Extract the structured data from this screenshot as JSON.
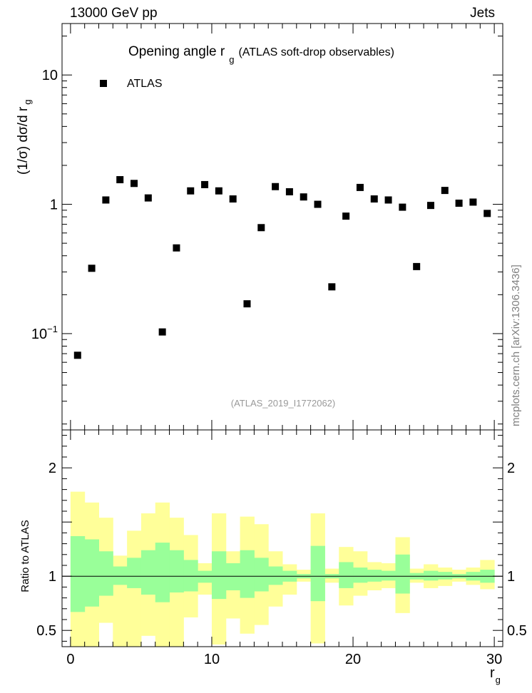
{
  "header": {
    "left": "13000 GeV pp",
    "right": "Jets"
  },
  "side_label": "mcplots.cern.ch [arXiv:1306.3436]",
  "chart_data": [
    {
      "type": "scatter",
      "title_main": "Opening angle r",
      "title_sub": "g",
      "title_rest": "(ATLAS soft-drop observables)",
      "ylabel": "(1/σ) dσ/d r",
      "ylabel_sub": "g",
      "yscale": "log",
      "ylim": [
        0.018,
        25
      ],
      "xlim": [
        -0.6,
        30.6
      ],
      "yticks": [
        {
          "value": 10,
          "label": "10"
        },
        {
          "value": 1,
          "label": "1"
        },
        {
          "value": 0.1,
          "label": "10",
          "sup": "−1"
        }
      ],
      "legend": [
        {
          "label": "ATLAS",
          "marker": "square",
          "color": "#000000"
        }
      ],
      "legend_position": "top-left",
      "annotation": "(ATLAS_2019_I1772062)",
      "series": [
        {
          "name": "ATLAS",
          "x": [
            0.5,
            1.5,
            2.5,
            3.5,
            4.5,
            5.5,
            6.5,
            7.5,
            8.5,
            9.5,
            10.5,
            11.5,
            12.5,
            13.5,
            14.5,
            15.5,
            16.5,
            17.5,
            18.5,
            19.5,
            20.5,
            21.5,
            22.5,
            23.5,
            24.5,
            25.5,
            26.5,
            27.5,
            28.5,
            29.5
          ],
          "y": [
            0.068,
            0.32,
            1.08,
            1.55,
            1.45,
            1.12,
            0.103,
            0.46,
            1.27,
            1.42,
            1.27,
            1.1,
            0.17,
            0.66,
            1.37,
            1.25,
            1.14,
            1.0,
            0.23,
            0.81,
            1.35,
            1.1,
            1.08,
            0.95,
            0.33,
            0.98,
            1.28,
            1.02,
            1.04,
            0.85
          ]
        }
      ]
    },
    {
      "type": "area",
      "ylabel": "Ratio to ATLAS",
      "xlabel": "r",
      "xlabel_sub": "g",
      "xlim": [
        -0.6,
        30.6
      ],
      "ylim": [
        0.35,
        2.35
      ],
      "xticks": [
        0,
        10,
        20,
        30
      ],
      "yticks": [
        0.5,
        1,
        2
      ],
      "colors": {
        "outer_band": "#ffff99",
        "inner_band": "#99ff99",
        "reference_line": "#000000"
      },
      "bins": [
        0,
        1,
        2,
        3,
        4,
        5,
        6,
        7,
        8,
        9,
        10,
        11,
        12,
        13,
        14,
        15,
        16,
        17,
        18,
        19,
        20,
        21,
        22,
        23,
        24,
        25,
        26,
        27,
        28,
        29,
        30
      ],
      "outer_lo": [
        0.35,
        0.35,
        0.57,
        0.35,
        0.35,
        0.45,
        0.35,
        0.35,
        0.62,
        0.83,
        0.37,
        0.61,
        0.47,
        0.55,
        0.72,
        0.83,
        0.95,
        0.38,
        0.94,
        0.73,
        0.82,
        0.87,
        0.89,
        0.66,
        0.94,
        0.89,
        0.91,
        0.95,
        0.92,
        0.88,
        0.88
      ],
      "outer_hi": [
        1.78,
        1.68,
        1.54,
        1.19,
        1.42,
        1.58,
        1.68,
        1.54,
        1.38,
        1.12,
        1.58,
        1.23,
        1.55,
        1.48,
        1.23,
        1.11,
        1.06,
        1.58,
        1.07,
        1.27,
        1.23,
        1.13,
        1.12,
        1.36,
        1.07,
        1.11,
        1.08,
        1.06,
        1.08,
        1.15,
        1.12
      ],
      "inner_lo": [
        0.67,
        0.72,
        0.82,
        0.92,
        0.89,
        0.83,
        0.76,
        0.85,
        0.86,
        0.94,
        0.79,
        0.87,
        0.8,
        0.86,
        0.92,
        0.95,
        0.98,
        0.77,
        0.98,
        0.89,
        0.94,
        0.95,
        0.96,
        0.84,
        0.97,
        0.96,
        0.97,
        0.98,
        0.96,
        0.94,
        0.94
      ],
      "inner_hi": [
        1.37,
        1.34,
        1.23,
        1.09,
        1.17,
        1.24,
        1.31,
        1.24,
        1.15,
        1.05,
        1.23,
        1.12,
        1.24,
        1.17,
        1.09,
        1.05,
        1.02,
        1.28,
        1.02,
        1.13,
        1.08,
        1.06,
        1.05,
        1.2,
        1.03,
        1.05,
        1.04,
        1.02,
        1.04,
        1.06,
        1.06
      ],
      "reference": 1
    }
  ]
}
